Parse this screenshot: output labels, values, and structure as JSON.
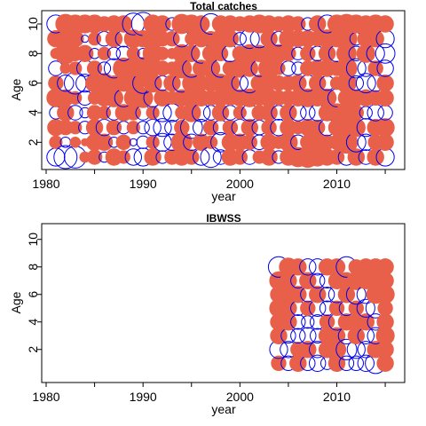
{
  "colors": {
    "positive": "#e8604a",
    "negative": "#0000ee",
    "frame": "#000000"
  },
  "chart_data": [
    {
      "type": "scatter",
      "subtype": "bubble-residuals",
      "title": "Total catches",
      "xlabel": "year",
      "ylabel": "Age",
      "xlim": [
        1980,
        2016
      ],
      "ylim": [
        1,
        10
      ],
      "xticks": [
        1980,
        1990,
        2000,
        2010
      ],
      "yticks": [
        2,
        4,
        6,
        8,
        10
      ],
      "years": [
        1981,
        1982,
        1983,
        1984,
        1985,
        1986,
        1987,
        1988,
        1989,
        1990,
        1991,
        1992,
        1993,
        1994,
        1995,
        1996,
        1997,
        1998,
        1999,
        2000,
        2001,
        2002,
        2003,
        2004,
        2005,
        2006,
        2007,
        2008,
        2009,
        2010,
        2011,
        2012,
        2013,
        2014,
        2015
      ],
      "ages": [
        1,
        2,
        3,
        4,
        5,
        6,
        7,
        8,
        9,
        10
      ],
      "residuals": [
        [
          -0.6,
          0.3,
          0.5,
          -0.3,
          0.6,
          0.4,
          -0.4,
          0.2,
          0.5,
          -0.6
        ],
        [
          -1.0,
          -0.2,
          0.4,
          0.5,
          0.5,
          -0.5,
          0.2,
          0.8,
          0.3,
          0.7
        ],
        [
          -0.9,
          0.2,
          0.3,
          -0.4,
          0.3,
          -0.9,
          0.3,
          0.4,
          0.5,
          0.6
        ],
        [
          0.2,
          0.1,
          -0.3,
          -0.2,
          -0.4,
          -0.6,
          -0.5,
          0.5,
          -0.1,
          0.6
        ],
        [
          0.4,
          0.5,
          0.5,
          0.4,
          0.3,
          0.6,
          0.4,
          -0.2,
          0.3,
          0.6
        ],
        [
          -0.2,
          0.5,
          -0.5,
          0.3,
          0.5,
          0.7,
          -0.3,
          0.3,
          -0.4,
          0.4
        ],
        [
          0.5,
          -0.2,
          0.4,
          -0.4,
          0.6,
          0.4,
          -0.7,
          -0.3,
          0.5,
          0.5
        ],
        [
          0.3,
          0.4,
          -0.3,
          0.5,
          -0.6,
          0.5,
          0.8,
          -0.4,
          -0.5,
          0.5
        ],
        [
          -0.5,
          -0.1,
          0.3,
          0.4,
          0.6,
          0.9,
          0.7,
          0.3,
          0.6,
          -0.9
        ],
        [
          -0.6,
          -0.3,
          -0.3,
          -0.4,
          0.7,
          -0.8,
          0.9,
          -0.2,
          0.5,
          -1.0
        ],
        [
          0.5,
          0.3,
          -0.5,
          0.3,
          -0.6,
          0.6,
          0.5,
          0.7,
          0.8,
          0.6
        ],
        [
          -0.3,
          -0.6,
          -0.6,
          -0.6,
          0.5,
          -0.4,
          0.4,
          0.3,
          0.4,
          0.5
        ],
        [
          0.4,
          -0.5,
          -0.4,
          -0.6,
          0.3,
          0.5,
          0.3,
          0.2,
          0.4,
          -0.3
        ],
        [
          0.5,
          0.8,
          0.4,
          0.3,
          0.5,
          -0.6,
          0.7,
          0.6,
          -0.5,
          0.7
        ],
        [
          0.4,
          -0.5,
          -0.9,
          0.6,
          0.6,
          0.6,
          -0.6,
          0.5,
          0.3,
          0.6
        ],
        [
          -0.5,
          0.5,
          -0.5,
          -0.6,
          0.5,
          0.4,
          0.5,
          -0.7,
          0.5,
          0.5
        ],
        [
          -0.8,
          0.3,
          0.4,
          -0.4,
          0.4,
          0.5,
          0.6,
          0.5,
          0.4,
          -0.8
        ],
        [
          -0.4,
          -0.7,
          -0.4,
          0.5,
          0.5,
          0.6,
          -0.6,
          0.4,
          0.6,
          0.5
        ],
        [
          0.5,
          0.5,
          0.4,
          -0.4,
          0.4,
          0.6,
          0.4,
          -0.5,
          0.5,
          0.5
        ],
        [
          0.4,
          0.5,
          -0.5,
          0.3,
          0.5,
          -0.5,
          0.6,
          0.4,
          -0.3,
          0.4
        ],
        [
          -0.4,
          0.4,
          0.5,
          -0.5,
          0.6,
          -0.7,
          0.5,
          0.6,
          -0.7,
          0.5
        ],
        [
          0.3,
          -0.4,
          -0.4,
          0.4,
          0.4,
          0.5,
          -0.5,
          0.5,
          -0.6,
          0.6
        ],
        [
          0.5,
          0.5,
          0.4,
          0.5,
          0.6,
          0.4,
          0.8,
          0.4,
          0.5,
          0.5
        ],
        [
          -0.3,
          0.3,
          -0.5,
          -0.4,
          0.4,
          0.4,
          0.3,
          0.6,
          -0.4,
          0.4
        ],
        [
          0.5,
          0.6,
          0.5,
          0.5,
          0.4,
          0.4,
          -0.4,
          0.4,
          0.6,
          0.5
        ],
        [
          0.7,
          -0.4,
          0.3,
          -0.5,
          0.5,
          0.5,
          -0.3,
          -0.3,
          0.5,
          0.4
        ],
        [
          0.8,
          0.4,
          0.5,
          -0.4,
          0.6,
          -0.5,
          0.4,
          0.4,
          0.5,
          -0.3
        ],
        [
          0.6,
          0.6,
          0.4,
          -0.5,
          0.5,
          0.5,
          0.5,
          -0.4,
          0.4,
          0.5
        ],
        [
          0.5,
          0.4,
          -0.5,
          0.5,
          0.6,
          -0.4,
          0.5,
          0.5,
          0.6,
          -0.6
        ],
        [
          0.4,
          0.4,
          0.5,
          0.6,
          -0.6,
          0.3,
          0.4,
          -0.5,
          0.5,
          0.6
        ],
        [
          -0.5,
          0.9,
          0.9,
          0.8,
          0.5,
          0.7,
          0.8,
          0.7,
          0.8,
          0.7
        ],
        [
          0.5,
          -0.7,
          0.6,
          0.4,
          0.5,
          -0.4,
          -0.7,
          -0.4,
          -0.3,
          0.6
        ],
        [
          -0.4,
          -0.5,
          -0.6,
          -0.3,
          0.5,
          -0.7,
          -0.5,
          0.6,
          0.5,
          0.5
        ],
        [
          0.5,
          0.4,
          0.5,
          -0.5,
          0.4,
          -0.5,
          0.4,
          -0.6,
          0.5,
          0.6
        ],
        [
          -0.6,
          0.5,
          0.6,
          -0.4,
          0.5,
          0.5,
          -0.5,
          -0.7,
          -0.6,
          0.5
        ]
      ]
    },
    {
      "type": "scatter",
      "subtype": "bubble-residuals",
      "title": "IBWSS",
      "xlabel": "year",
      "ylabel": "Age",
      "xlim": [
        1980,
        2016
      ],
      "ylim": [
        0.5,
        10.5
      ],
      "xticks": [
        1980,
        1990,
        2000,
        2010
      ],
      "yticks": [
        2,
        4,
        6,
        8,
        10
      ],
      "years": [
        2004,
        2005,
        2006,
        2007,
        2008,
        2009,
        2010,
        2011,
        2012,
        2013,
        2014,
        2015
      ],
      "ages": [
        1,
        2,
        3,
        4,
        5,
        6,
        7,
        8
      ],
      "residuals": [
        [
          0.4,
          -0.6,
          0.5,
          0.5,
          0.6,
          0.5,
          0.6,
          -0.8
        ],
        [
          -0.4,
          -0.5,
          -0.4,
          0.5,
          0.5,
          0.6,
          0.5,
          0.6
        ],
        [
          0.5,
          0.4,
          -0.4,
          -0.4,
          -0.4,
          0.5,
          -0.4,
          0.5
        ],
        [
          -0.4,
          0.5,
          -0.5,
          -0.3,
          0.4,
          -0.4,
          0.5,
          -0.5
        ],
        [
          -0.5,
          -0.5,
          -0.4,
          -0.4,
          -0.5,
          0.5,
          -0.4,
          -0.5
        ],
        [
          -0.3,
          0.5,
          0.5,
          0.4,
          -0.4,
          -0.4,
          -0.4,
          0.5
        ],
        [
          0.5,
          0.6,
          0.5,
          -0.5,
          0.4,
          -0.5,
          0.5,
          0.5
        ],
        [
          -0.4,
          -0.8,
          -0.5,
          0.5,
          -0.4,
          0.5,
          0.5,
          -0.8
        ],
        [
          -0.4,
          -0.6,
          0.5,
          0.5,
          0.4,
          -0.7,
          0.6,
          0.4
        ],
        [
          -0.5,
          -0.5,
          -0.5,
          0.5,
          -0.6,
          -0.6,
          0.5,
          0.5
        ],
        [
          -0.8,
          0.5,
          -0.5,
          -0.5,
          -0.7,
          0.6,
          0.5,
          0.5
        ],
        [
          0.5,
          0.5,
          0.6,
          0.5,
          0.4,
          0.6,
          0.5,
          0.5
        ]
      ]
    }
  ]
}
